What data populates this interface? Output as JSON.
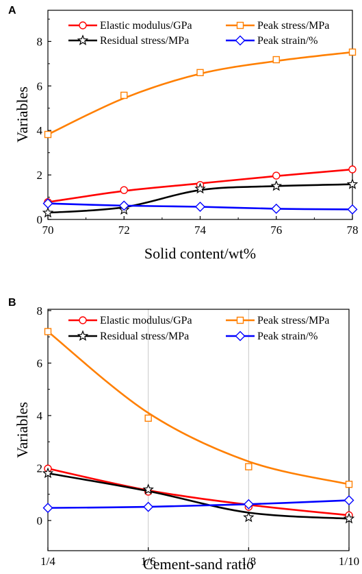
{
  "chart_data": [
    {
      "panel": "A",
      "type": "line",
      "xlabel": "Solid content/wt%",
      "ylabel": "Variables",
      "x": [
        70,
        72,
        74,
        76,
        78
      ],
      "x_tick_labels": [
        "70",
        "72",
        "74",
        "76",
        "78"
      ],
      "xlim": [
        70,
        78
      ],
      "ylim": [
        0,
        9.4
      ],
      "y_ticks": [
        0,
        2,
        4,
        6,
        8
      ],
      "grid": false,
      "legend_placement": "top",
      "series": [
        {
          "name": "Elastic modulus/GPa",
          "values": [
            0.78,
            1.32,
            1.55,
            1.97,
            2.25
          ],
          "fit": [
            0.78,
            1.28,
            1.62,
            1.95,
            2.25
          ],
          "color": "#ff0000",
          "marker": "circle"
        },
        {
          "name": "Peak stress/MPa",
          "values": [
            3.82,
            5.58,
            6.6,
            7.18,
            7.52
          ],
          "fit": [
            3.82,
            5.45,
            6.55,
            7.12,
            7.52
          ],
          "color": "#ff7f00",
          "marker": "square"
        },
        {
          "name": "Residual stress/MPa",
          "values": [
            0.3,
            0.43,
            1.38,
            1.5,
            1.58
          ],
          "fit": [
            0.3,
            0.55,
            1.32,
            1.5,
            1.58
          ],
          "color": "#000000",
          "marker": "star"
        },
        {
          "name": "Peak strain/%",
          "values": [
            0.72,
            0.62,
            0.57,
            0.48,
            0.45
          ],
          "fit": [
            0.72,
            0.62,
            0.57,
            0.48,
            0.45
          ],
          "color": "#0000ff",
          "marker": "diamond"
        }
      ]
    },
    {
      "panel": "B",
      "type": "line",
      "xlabel": "Cement-sand ratio",
      "ylabel": "Variables",
      "x": [
        0,
        1,
        2,
        3
      ],
      "x_tick_labels": [
        "1/4",
        "1/6",
        "1/8",
        "1/10"
      ],
      "xlim": [
        0,
        3
      ],
      "ylim": [
        -1.15,
        8.05
      ],
      "y_ticks": [
        0,
        2,
        4,
        6,
        8
      ],
      "grid": true,
      "legend_placement": "top",
      "series": [
        {
          "name": "Elastic modulus/GPa",
          "values": [
            1.98,
            1.1,
            0.52,
            0.2
          ],
          "fit": [
            1.98,
            1.15,
            0.6,
            0.2
          ],
          "color": "#ff0000",
          "marker": "circle"
        },
        {
          "name": "Peak stress/MPa",
          "values": [
            7.2,
            3.9,
            2.05,
            1.38
          ],
          "fit": [
            7.2,
            4.1,
            2.25,
            1.38
          ],
          "color": "#ff7f00",
          "marker": "square"
        },
        {
          "name": "Residual stress/MPa",
          "values": [
            1.8,
            1.18,
            0.12,
            0.07
          ],
          "fit": [
            1.8,
            1.12,
            0.3,
            0.07
          ],
          "color": "#000000",
          "marker": "star"
        },
        {
          "name": "Peak strain/%",
          "values": [
            0.48,
            0.52,
            0.62,
            0.77
          ],
          "fit": [
            0.48,
            0.52,
            0.62,
            0.77
          ],
          "color": "#0000ff",
          "marker": "diamond"
        }
      ]
    }
  ]
}
